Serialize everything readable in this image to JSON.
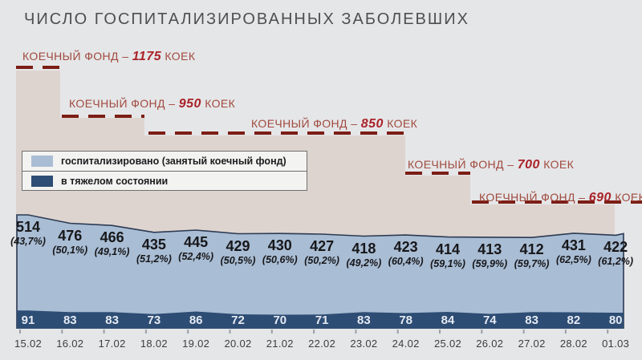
{
  "title": "ЧИСЛО ГОСПИТАЛИЗИРОВАННЫХ ЗАБОЛЕВШИХ",
  "colors": {
    "background": "#e5e6e8",
    "capacity_area": "#ded4cf",
    "hospitalized_area": "#a9bdd4",
    "severe_area": "#2e4d74",
    "area_outline": "#2b3a52",
    "capacity_dash": "#7c1d15",
    "capacity_text": "#a04a3e",
    "capacity_number": "#aa2328",
    "tick": "#9aa0a6"
  },
  "chart_data": {
    "type": "area",
    "title": "ЧИСЛО ГОСПИТАЛИЗИРОВАННЫХ ЗАБОЛЕВШИХ",
    "x": [
      "15.02",
      "16.02",
      "17.02",
      "18.02",
      "19.02",
      "20.02",
      "21.02",
      "22.02",
      "23.02",
      "24.02",
      "25.02",
      "26.02",
      "27.02",
      "28.02",
      "01.03"
    ],
    "series": [
      {
        "name": "госпитализировано (занятый коечный фонд)",
        "color": "#a9bdd4",
        "values": [
          514,
          476,
          466,
          435,
          445,
          429,
          430,
          427,
          418,
          423,
          414,
          413,
          412,
          431,
          422
        ],
        "percent_labels": [
          "(43,7%)",
          "(50,1%)",
          "(49,1%)",
          "(51,2%)",
          "(52,4%)",
          "(50,5%)",
          "(50,6%)",
          "(50,2%)",
          "(49,2%)",
          "(60,4%)",
          "(59,1%)",
          "(59,9%)",
          "(59,7%)",
          "(62,5%)",
          "(61,2%)"
        ]
      },
      {
        "name": "в тяжелом состоянии",
        "color": "#2e4d74",
        "values": [
          91,
          83,
          83,
          73,
          86,
          72,
          70,
          71,
          83,
          78,
          84,
          74,
          83,
          82,
          80
        ]
      }
    ],
    "capacity_steps": [
      {
        "label_prefix": "КОЕЧНЫЙ ФОНД – ",
        "beds": 1175,
        "label_suffix": " КОЕК",
        "dates": "15.02"
      },
      {
        "label_prefix": "КОЕЧНЫЙ ФОНД – ",
        "beds": 950,
        "label_suffix": " КОЕК",
        "dates": "16.02–17.02"
      },
      {
        "label_prefix": "КОЕЧНЫЙ ФОНД – ",
        "beds": 850,
        "label_suffix": " КОЕК",
        "dates": "18.02–23.02"
      },
      {
        "label_prefix": "КОЕЧНЫЙ ФОНД – ",
        "beds": 700,
        "label_suffix": " КОЕК",
        "dates": "24.02–25.02"
      },
      {
        "label_prefix": "КОЕЧНЫЙ ФОНД – ",
        "beds": 690,
        "label_suffix": " КОЕК",
        "dates": "26.02–01.03"
      }
    ],
    "ylim": [
      0,
      1175
    ],
    "grid": false,
    "legend_position": "middle-left-overlay"
  }
}
